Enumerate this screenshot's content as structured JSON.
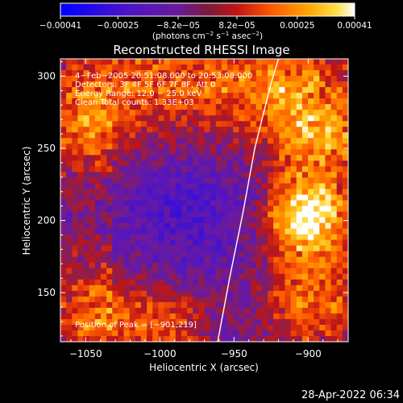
{
  "chart_data": {
    "type": "heatmap",
    "title": "Reconstructed RHESSI Image",
    "xlabel": "Heliocentric X (arcsec)",
    "ylabel": "Heliocentric Y (arcsec)",
    "xlim": [
      -1067,
      -873
    ],
    "ylim": [
      116,
      312
    ],
    "xticks": [
      -1050,
      -1000,
      -950,
      -900
    ],
    "xtick_labels": [
      "−1050",
      "−1000",
      "−950",
      "−900"
    ],
    "yticks": [
      150,
      200,
      250,
      300
    ],
    "ytick_labels": [
      "150",
      "200",
      "250",
      "300"
    ],
    "annotations": [
      "4−Feb−2005 20:51:08.000 to 20:53:08.000",
      "Detectors: 3F 4F 5F 6F 7F 8F, Att 0",
      "Energy Range: 12.0 − 25.0 keV",
      "Clean    Total counts: 1.33E+03"
    ],
    "peak_label": "Position of Peak = [−901,219]",
    "peak": {
      "x": -901,
      "y": 219
    },
    "colorbar": {
      "range": [
        -0.00041,
        0.00041
      ],
      "ticks": [
        -0.00041,
        -0.00025,
        -8.2e-05,
        8.2e-05,
        0.00025,
        0.00041
      ],
      "tick_labels": [
        "−0.00041",
        "−0.00025",
        "−8.2e−05",
        "8.2e−05",
        "0.00025",
        "0.00041"
      ],
      "unit_parts": [
        "(photons cm",
        "−2",
        " s",
        "−1",
        " asec",
        "−2",
        ")"
      ]
    },
    "limb_curve": [
      [
        -961,
        116
      ],
      [
        -953,
        160
      ],
      [
        -944,
        205
      ],
      [
        -936,
        250
      ],
      [
        -925,
        295
      ],
      [
        -920,
        312
      ]
    ]
  },
  "footer": {
    "timestamp": "28-Apr-2022 06:34"
  },
  "colors": {
    "background": "#000000",
    "axis": "#ffffff",
    "palette": [
      "#0000ff",
      "#3a10d8",
      "#6a1ab8",
      "#8a2a6a",
      "#c01515",
      "#ff4a00",
      "#ff9a00",
      "#ffd23a",
      "#ffffff"
    ]
  }
}
